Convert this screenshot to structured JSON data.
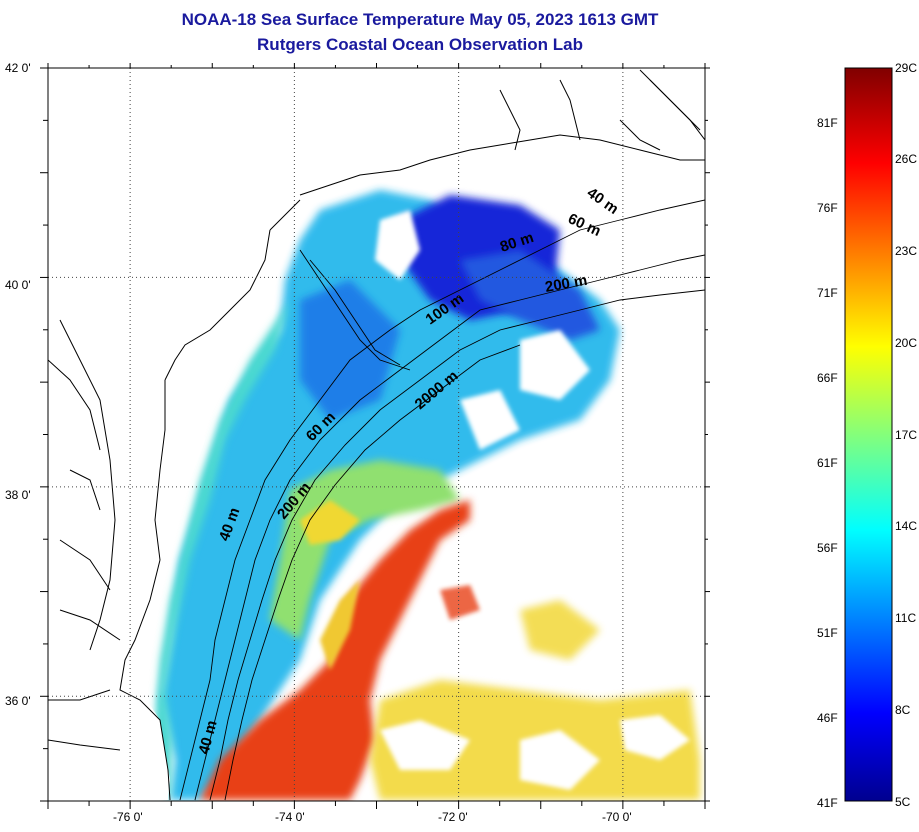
{
  "title": "NOAA-18 Sea Surface Temperature May 05, 2023 1613 GMT",
  "subtitle": "Rutgers Coastal Ocean Observation Lab",
  "map": {
    "lon_range": [
      -77,
      -69
    ],
    "lat_range": [
      35,
      42
    ],
    "lon_ticks": [
      -76,
      -74,
      -72,
      -70
    ],
    "lon_tick_labels": [
      "-76 0'",
      "-74 0'",
      "-72 0'",
      "-70 0'"
    ],
    "lat_ticks": [
      42,
      40,
      38,
      36
    ],
    "lat_tick_labels": [
      "42 0'",
      "40 0'",
      "38 0'",
      "36 0'"
    ],
    "grid": "dotted",
    "isobath_labels": [
      "40 m",
      "60 m",
      "80 m",
      "200 m",
      "100 m",
      "2000 m",
      "60 m",
      "200 m",
      "40 m",
      "40 m"
    ]
  },
  "colorbar": {
    "celsius_labels": [
      "29C",
      "26C",
      "23C",
      "20C",
      "17C",
      "14C",
      "11C",
      "8C",
      "5C"
    ],
    "fahrenheit_labels": [
      "81F",
      "76F",
      "71F",
      "66F",
      "61F",
      "56F",
      "51F",
      "46F",
      "41F"
    ],
    "range_c": [
      5,
      29
    ],
    "colormap": "jet",
    "stops": [
      "#00008f",
      "#0000ff",
      "#00ffff",
      "#ffff00",
      "#ff0000",
      "#800000"
    ]
  },
  "colors": {
    "title": "#1a1a9e",
    "cold_shelf": "#1e90ff",
    "deep_blue": "#1a3ad8",
    "nearshore": "#3cc8e0",
    "gulf_stream": "#e8421a",
    "warm_yellow": "#f0d020"
  }
}
